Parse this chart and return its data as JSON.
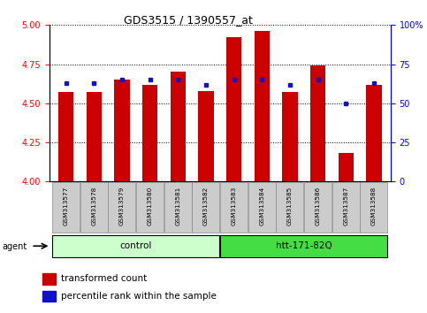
{
  "title": "GDS3515 / 1390557_at",
  "samples": [
    "GSM313577",
    "GSM313578",
    "GSM313579",
    "GSM313580",
    "GSM313581",
    "GSM313582",
    "GSM313583",
    "GSM313584",
    "GSM313585",
    "GSM313586",
    "GSM313587",
    "GSM313588"
  ],
  "transformed_count": [
    4.57,
    4.57,
    4.65,
    4.62,
    4.7,
    4.58,
    4.92,
    4.96,
    4.57,
    4.74,
    4.18,
    4.62
  ],
  "percentile_rank": [
    63,
    63,
    65,
    65,
    65,
    62,
    65,
    65,
    62,
    65,
    50,
    63
  ],
  "ylim_left": [
    4.0,
    5.0
  ],
  "ylim_right": [
    0,
    100
  ],
  "yticks_left": [
    4.0,
    4.25,
    4.5,
    4.75,
    5.0
  ],
  "yticks_right": [
    0,
    25,
    50,
    75,
    100
  ],
  "bar_color": "#cc0000",
  "dot_color": "#1111cc",
  "control_group": [
    0,
    1,
    2,
    3,
    4,
    5
  ],
  "htt_group": [
    6,
    7,
    8,
    9,
    10,
    11
  ],
  "control_label": "control",
  "htt_label": "htt-171-82Q",
  "agent_label": "agent",
  "legend_bar_label": "transformed count",
  "legend_dot_label": "percentile rank within the sample",
  "control_bg": "#ccffcc",
  "htt_bg": "#44dd44",
  "xticklabel_bg": "#cccccc",
  "title_fontsize": 9,
  "tick_fontsize": 7,
  "label_fontsize": 7.5,
  "group_fontsize": 7.5
}
